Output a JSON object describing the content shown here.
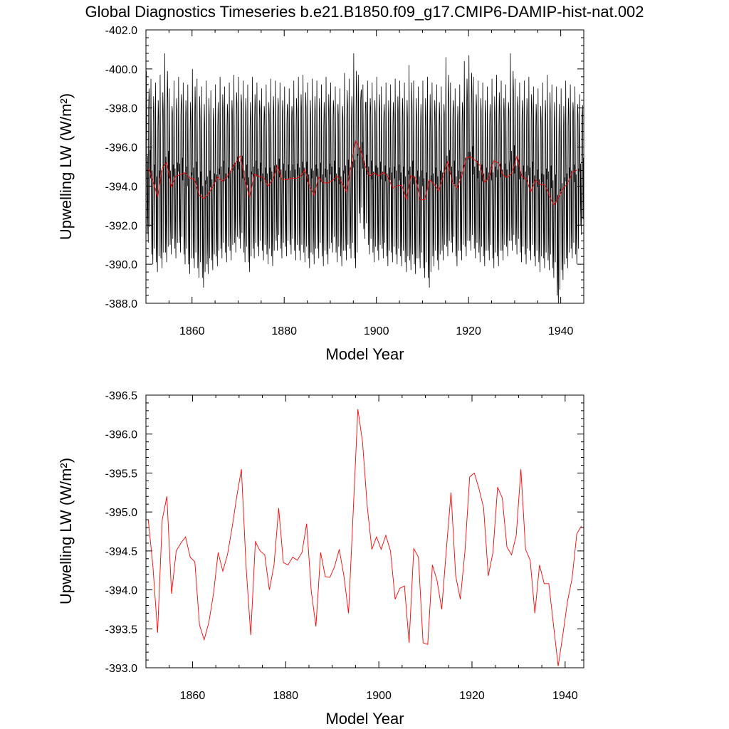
{
  "title": "Global Diagnostics Timeseries b.e21.B1850.f09_g17.CMIP6-DAMIP-hist-nat.002",
  "colors": {
    "monthly": "#000000",
    "annual": "#ff0000"
  },
  "chart_data": [
    {
      "type": "line",
      "xlabel": "Model Year",
      "ylabel": "Upwelling LW (W/m²)",
      "xlim": [
        1850,
        1945
      ],
      "ylim": [
        -402.0,
        -388.0
      ],
      "xticks": [
        1860,
        1880,
        1900,
        1920,
        1940
      ],
      "xtick_labels": [
        "1860",
        "1880",
        "1900",
        "1920",
        "1940"
      ],
      "yticks": [
        -388,
        -390,
        -392,
        -394,
        -396,
        -398,
        -400,
        -402
      ],
      "ytick_labels": [
        "-388.0",
        "-390.0",
        "-392.0",
        "-394.0",
        "-396.0",
        "-398.0",
        "-400.0",
        "-402.0"
      ],
      "series": [
        {
          "kind": "monthly",
          "start_year": 1850,
          "samples_per_year": 12,
          "seasonal_low": -399.2,
          "seasonal_high": -391.6,
          "annual_peaks": [
            -392.4,
            -391.3,
            -390.9,
            -391.1,
            -391.4,
            -391.8,
            -391.6,
            -391.9,
            -391.3,
            -390.8,
            -391.1,
            -390.6,
            -390.1,
            -390.8,
            -391.0,
            -391.2,
            -391.6,
            -391.4,
            -391.5,
            -391.9,
            -392.1,
            -391.4,
            -390.9,
            -391.6,
            -391.7,
            -391.5,
            -391.3,
            -391.2,
            -392.0,
            -391.6,
            -391.7,
            -391.8,
            -391.5,
            -391.5,
            -391.4,
            -391.1,
            -391.3,
            -391.6,
            -391.2,
            -391.3,
            -391.9,
            -391.4,
            -391.2,
            -391.5,
            -391.6,
            -391.1,
            -393.4,
            -392.6,
            -391.8,
            -391.4,
            -391.5,
            -391.6,
            -391.2,
            -391.4,
            -391.3,
            -391.2,
            -390.9,
            -391.0,
            -390.8,
            -391.1,
            -390.6,
            -390.1,
            -391.2,
            -391.0,
            -391.5,
            -391.7,
            -391.9,
            -391.2,
            -391.5,
            -391.7,
            -392.0,
            -391.6,
            -391.4,
            -391.2,
            -391.5,
            -391.1,
            -391.2,
            -391.5,
            -391.7,
            -392.0,
            -391.8,
            -391.4,
            -391.3,
            -391.5,
            -391.2,
            -390.9,
            -391.1,
            -391.0,
            -390.6,
            -389.2,
            -390.5,
            -391.1,
            -391.6,
            -391.3,
            -392.8
          ],
          "annual_troughs": [
            -399.9,
            -399.5,
            -399.3,
            -399.7,
            -400.8,
            -399.0,
            -399.4,
            -399.6,
            -399.3,
            -399.2,
            -400.0,
            -399.5,
            -399.1,
            -399.4,
            -398.9,
            -399.2,
            -399.6,
            -399.1,
            -399.3,
            -399.7,
            -399.6,
            -399.4,
            -399.2,
            -399.6,
            -399.3,
            -399.0,
            -399.2,
            -399.5,
            -399.4,
            -399.3,
            -399.1,
            -399.0,
            -399.4,
            -399.6,
            -399.7,
            -399.3,
            -399.5,
            -399.4,
            -399.2,
            -399.6,
            -399.3,
            -399.1,
            -399.0,
            -399.8,
            -399.5,
            -400.8,
            -399.7,
            -399.2,
            -399.4,
            -399.3,
            -399.6,
            -399.1,
            -399.3,
            -399.2,
            -399.5,
            -399.4,
            -399.3,
            -400.2,
            -399.4,
            -399.1,
            -399.4,
            -399.6,
            -399.3,
            -399.2,
            -399.1,
            -400.6,
            -399.3,
            -399.0,
            -399.2,
            -400.4,
            -400.7,
            -399.6,
            -399.4,
            -399.3,
            -399.1,
            -399.5,
            -399.7,
            -399.4,
            -399.2,
            -400.8,
            -399.5,
            -399.3,
            -399.4,
            -399.6,
            -399.1,
            -399.0,
            -399.3,
            -399.7,
            -399.2,
            -399.1,
            -399.0,
            -399.4,
            -399.2,
            -399.1,
            -398.7
          ]
        },
        {
          "kind": "annual",
          "x": [
            1850.5,
            1851.5,
            1852.5,
            1853.5,
            1854.5,
            1855.5,
            1856.5,
            1857.5,
            1858.5,
            1859.5,
            1860.5,
            1861.5,
            1862.5,
            1863.5,
            1864.5,
            1865.5,
            1866.5,
            1867.5,
            1868.5,
            1869.5,
            1870.5,
            1871.5,
            1872.5,
            1873.5,
            1874.5,
            1875.5,
            1876.5,
            1877.5,
            1878.5,
            1879.5,
            1880.5,
            1881.5,
            1882.5,
            1883.5,
            1884.5,
            1885.5,
            1886.5,
            1887.5,
            1888.5,
            1889.5,
            1890.5,
            1891.5,
            1892.5,
            1893.5,
            1894.5,
            1895.5,
            1896.5,
            1897.5,
            1898.5,
            1899.5,
            1900.5,
            1901.5,
            1902.5,
            1903.5,
            1904.5,
            1905.5,
            1906.5,
            1907.5,
            1908.5,
            1909.5,
            1910.5,
            1911.5,
            1912.5,
            1913.5,
            1914.5,
            1915.5,
            1916.5,
            1917.5,
            1918.5,
            1919.5,
            1920.5,
            1921.5,
            1922.5,
            1923.5,
            1924.5,
            1925.5,
            1926.5,
            1927.5,
            1928.5,
            1929.5,
            1930.5,
            1931.5,
            1932.5,
            1933.5,
            1934.5,
            1935.5,
            1936.5,
            1937.5,
            1938.5,
            1939.5,
            1940.5,
            1941.5,
            1942.5,
            1943.5
          ],
          "y": [
            -394.9,
            -394.3,
            -393.45,
            -394.9,
            -395.2,
            -393.95,
            -394.5,
            -394.6,
            -394.68,
            -394.42,
            -394.36,
            -393.55,
            -393.36,
            -393.58,
            -393.95,
            -394.48,
            -394.24,
            -394.45,
            -394.8,
            -395.2,
            -395.55,
            -394.3,
            -393.42,
            -394.62,
            -394.5,
            -394.45,
            -394.0,
            -394.32,
            -395.05,
            -394.35,
            -394.32,
            -394.42,
            -394.38,
            -394.48,
            -394.85,
            -393.98,
            -393.53,
            -394.48,
            -394.17,
            -394.16,
            -394.3,
            -394.52,
            -394.18,
            -393.7,
            -395.0,
            -396.32,
            -395.9,
            -395.08,
            -394.52,
            -394.68,
            -394.52,
            -394.7,
            -394.5,
            -393.88,
            -394.02,
            -394.05,
            -393.32,
            -394.53,
            -394.42,
            -393.32,
            -393.3,
            -394.32,
            -394.12,
            -393.75,
            -394.52,
            -395.25,
            -394.18,
            -393.88,
            -394.5,
            -395.45,
            -395.5,
            -395.3,
            -395.05,
            -394.18,
            -394.48,
            -395.32,
            -395.18,
            -394.55,
            -394.45,
            -394.7,
            -395.55,
            -394.52,
            -394.38,
            -393.7,
            -394.32,
            -394.08,
            -394.08,
            -393.55,
            -393.02,
            -393.42,
            -393.85,
            -394.15,
            -394.72,
            -394.82
          ]
        }
      ]
    },
    {
      "type": "line",
      "xlabel": "Model Year",
      "ylabel": "Upwelling LW (W/m²)",
      "xlim": [
        1850,
        1944
      ],
      "ylim": [
        -396.5,
        -393.0
      ],
      "xticks": [
        1860,
        1880,
        1900,
        1920,
        1940
      ],
      "xtick_labels": [
        "1860",
        "1880",
        "1900",
        "1920",
        "1940"
      ],
      "yticks": [
        -393.0,
        -393.5,
        -394.0,
        -394.5,
        -395.0,
        -395.5,
        -396.0,
        -396.5
      ],
      "ytick_labels": [
        "-393.0",
        "-393.5",
        "-394.0",
        "-394.5",
        "-395.0",
        "-395.5",
        "-396.0",
        "-396.5"
      ],
      "series": [
        {
          "kind": "annual",
          "ref": 0
        }
      ]
    }
  ]
}
